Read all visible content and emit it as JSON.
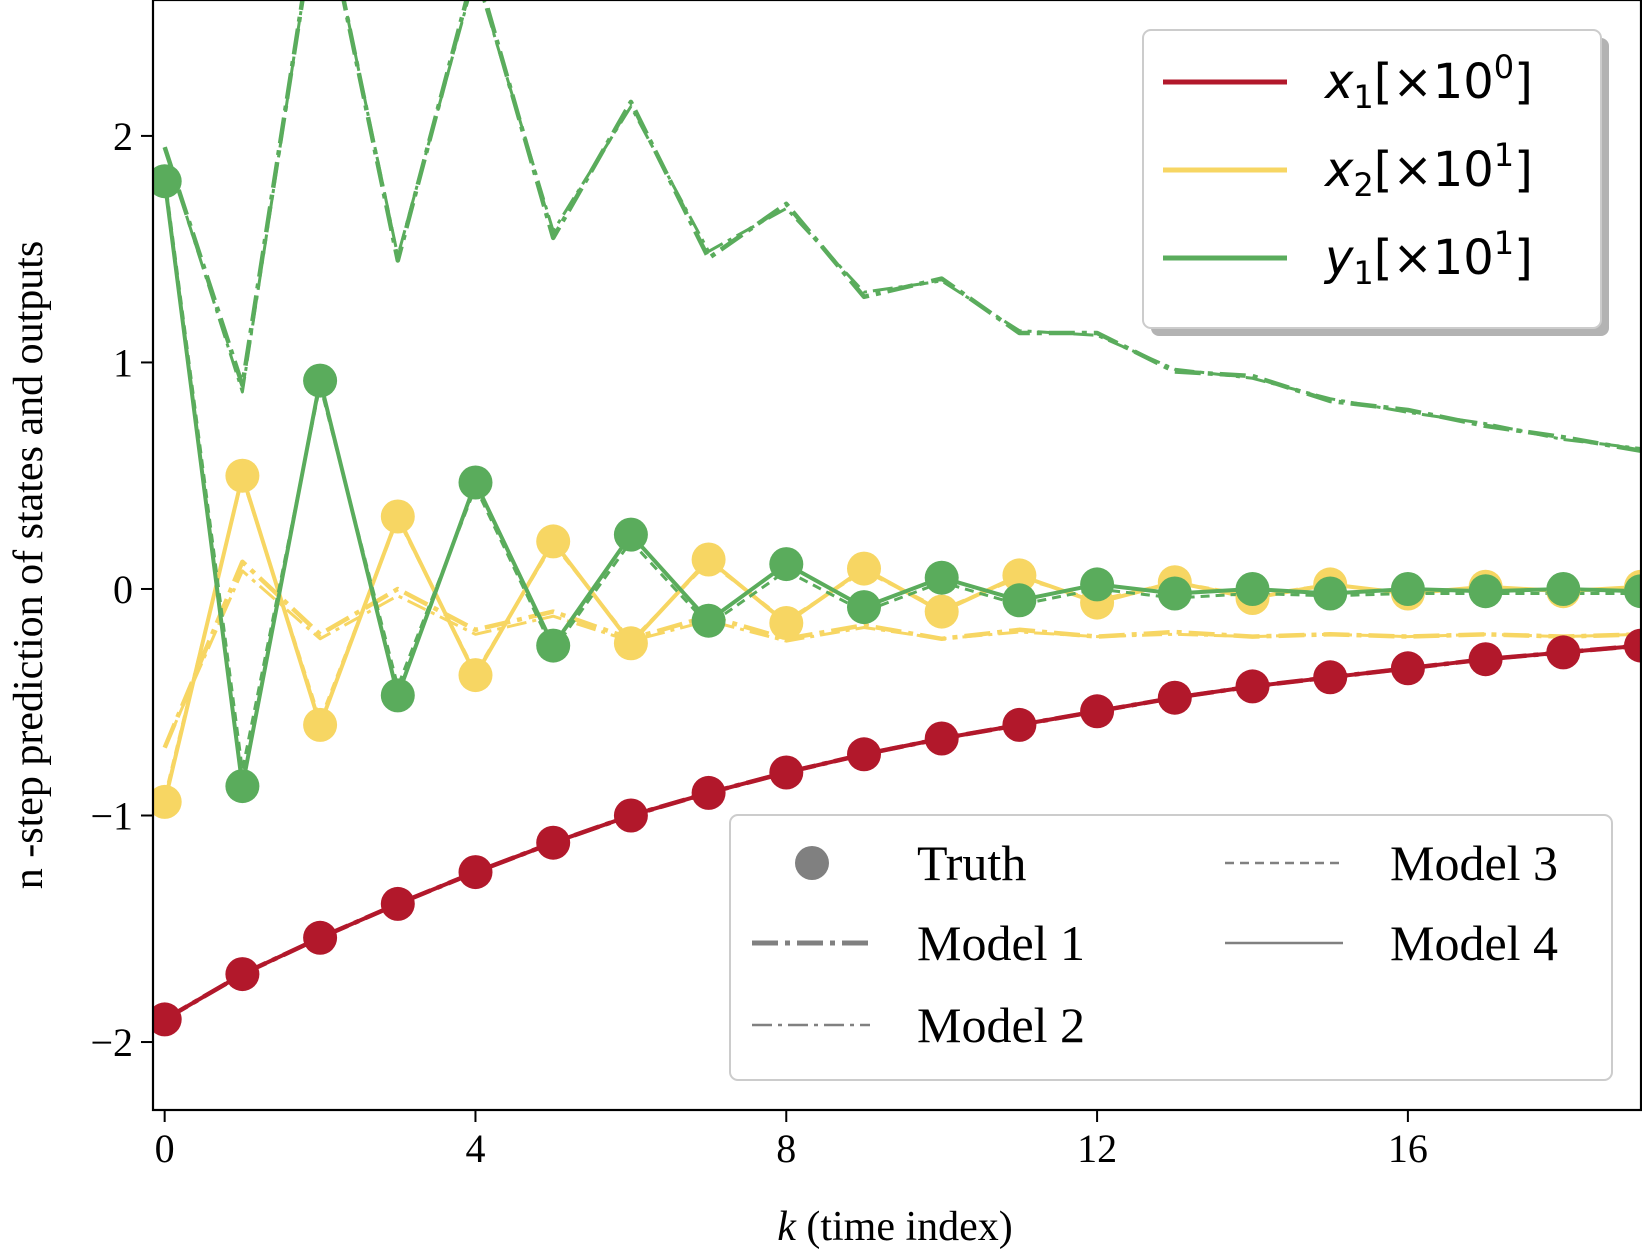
{
  "chart_data": {
    "type": "line",
    "xlabel_var": "k",
    "xlabel_rest": " (time index)",
    "ylabel": "n -step prediction of states and outputs",
    "xlim": [
      -0.15,
      19
    ],
    "ylim": [
      -2.3,
      2.6
    ],
    "xticks": [
      0,
      4,
      8,
      12,
      16
    ],
    "yticks": [
      -2,
      -1,
      0,
      1,
      2
    ],
    "ytick_labels": [
      "−2",
      "−1",
      "0",
      "1",
      "2"
    ],
    "grid": false,
    "x": [
      0,
      1,
      2,
      3,
      4,
      5,
      6,
      7,
      8,
      9,
      10,
      11,
      12,
      13,
      14,
      15,
      16,
      17,
      18,
      19
    ],
    "colors": {
      "x1": "#b2182b",
      "x2": "#f7d663",
      "y1": "#5aac5c",
      "legend_gray": "#808080"
    },
    "series": [
      {
        "key": "x1",
        "var": "x",
        "sub": "1",
        "mult": "[×10",
        "exp": "0",
        "close": "]",
        "color": "#b2182b",
        "truth": [
          -1.9,
          -1.7,
          -1.54,
          -1.39,
          -1.25,
          -1.12,
          -1.0,
          -0.9,
          -0.81,
          -0.73,
          -0.66,
          -0.6,
          -0.54,
          -0.48,
          -0.43,
          -0.39,
          -0.35,
          -0.31,
          -0.28,
          -0.25
        ],
        "model1": [
          -1.9,
          -1.7,
          -1.54,
          -1.39,
          -1.25,
          -1.12,
          -1.0,
          -0.9,
          -0.81,
          -0.73,
          -0.66,
          -0.6,
          -0.54,
          -0.48,
          -0.43,
          -0.39,
          -0.35,
          -0.31,
          -0.28,
          -0.25
        ],
        "model2": [
          -1.9,
          -1.7,
          -1.54,
          -1.39,
          -1.25,
          -1.12,
          -1.0,
          -0.9,
          -0.81,
          -0.73,
          -0.66,
          -0.6,
          -0.54,
          -0.48,
          -0.43,
          -0.39,
          -0.35,
          -0.31,
          -0.28,
          -0.25
        ],
        "model3": [
          -1.9,
          -1.7,
          -1.54,
          -1.39,
          -1.25,
          -1.12,
          -1.0,
          -0.9,
          -0.81,
          -0.73,
          -0.66,
          -0.6,
          -0.54,
          -0.48,
          -0.43,
          -0.39,
          -0.35,
          -0.31,
          -0.28,
          -0.25
        ],
        "model4": [
          -1.9,
          -1.7,
          -1.54,
          -1.39,
          -1.25,
          -1.12,
          -1.0,
          -0.9,
          -0.81,
          -0.73,
          -0.66,
          -0.6,
          -0.54,
          -0.48,
          -0.43,
          -0.39,
          -0.35,
          -0.31,
          -0.28,
          -0.25
        ]
      },
      {
        "key": "x2",
        "var": "x",
        "sub": "2",
        "mult": "[×10",
        "exp": "1",
        "close": "]",
        "color": "#f7d663",
        "truth": [
          -0.94,
          0.5,
          -0.6,
          0.32,
          -0.38,
          0.21,
          -0.24,
          0.13,
          -0.15,
          0.09,
          -0.1,
          0.06,
          -0.06,
          0.03,
          -0.04,
          0.02,
          -0.02,
          0.01,
          -0.01,
          0.01
        ],
        "model1": [
          -0.7,
          0.12,
          -0.2,
          0.0,
          -0.18,
          -0.1,
          -0.22,
          -0.12,
          -0.22,
          -0.16,
          -0.22,
          -0.18,
          -0.21,
          -0.19,
          -0.21,
          -0.2,
          -0.21,
          -0.2,
          -0.21,
          -0.2
        ],
        "model2": [
          -0.7,
          0.08,
          -0.22,
          -0.03,
          -0.2,
          -0.12,
          -0.23,
          -0.14,
          -0.23,
          -0.17,
          -0.22,
          -0.19,
          -0.21,
          -0.2,
          -0.21,
          -0.2,
          -0.21,
          -0.2,
          -0.21,
          -0.2
        ],
        "model3": [
          -0.92,
          0.49,
          -0.58,
          0.31,
          -0.37,
          0.2,
          -0.23,
          0.12,
          -0.14,
          0.08,
          -0.09,
          0.05,
          -0.05,
          0.03,
          -0.03,
          0.02,
          -0.02,
          0.01,
          -0.01,
          0.01
        ],
        "model4": [
          -0.94,
          0.5,
          -0.6,
          0.32,
          -0.38,
          0.21,
          -0.24,
          0.13,
          -0.15,
          0.09,
          -0.1,
          0.06,
          -0.06,
          0.03,
          -0.04,
          0.02,
          -0.02,
          0.01,
          -0.01,
          0.01
        ]
      },
      {
        "key": "y1",
        "var": "y",
        "sub": "1",
        "mult": "[×10",
        "exp": "1",
        "close": "]",
        "color": "#5aac5c",
        "truth": [
          1.8,
          -0.87,
          0.92,
          -0.47,
          0.47,
          -0.25,
          0.24,
          -0.14,
          0.11,
          -0.08,
          0.05,
          -0.05,
          0.02,
          -0.02,
          0.0,
          -0.02,
          0.0,
          -0.01,
          0.0,
          -0.01
        ],
        "model1": [
          1.95,
          0.9,
          3.1,
          1.45,
          2.75,
          1.55,
          2.15,
          1.46,
          1.7,
          1.29,
          1.37,
          1.13,
          1.13,
          0.96,
          0.94,
          0.83,
          0.79,
          0.72,
          0.67,
          0.61
        ],
        "model2": [
          1.95,
          0.87,
          3.1,
          1.47,
          2.72,
          1.58,
          2.13,
          1.49,
          1.68,
          1.31,
          1.36,
          1.14,
          1.12,
          0.97,
          0.93,
          0.84,
          0.78,
          0.73,
          0.66,
          0.62
        ],
        "model3": [
          1.82,
          -0.8,
          0.9,
          -0.43,
          0.45,
          -0.27,
          0.21,
          -0.16,
          0.08,
          -0.1,
          0.03,
          -0.07,
          0.0,
          -0.04,
          -0.02,
          -0.03,
          -0.02,
          -0.02,
          -0.02,
          -0.02
        ],
        "model4": [
          1.8,
          -0.87,
          0.92,
          -0.47,
          0.47,
          -0.25,
          0.24,
          -0.14,
          0.11,
          -0.08,
          0.05,
          -0.05,
          0.02,
          -0.02,
          0.0,
          -0.02,
          0.0,
          -0.01,
          0.0,
          -0.01
        ]
      }
    ],
    "style_legend": [
      {
        "label": "Truth",
        "style": "marker"
      },
      {
        "label": "Model 1",
        "style": "dashdot-thick"
      },
      {
        "label": "Model 2",
        "style": "dashdot-thin"
      },
      {
        "label": "Model 3",
        "style": "dashed-thin"
      },
      {
        "label": "Model 4",
        "style": "solid-thin"
      }
    ],
    "series_legend_placement": "upper right",
    "style_legend_placement": "lower right"
  }
}
